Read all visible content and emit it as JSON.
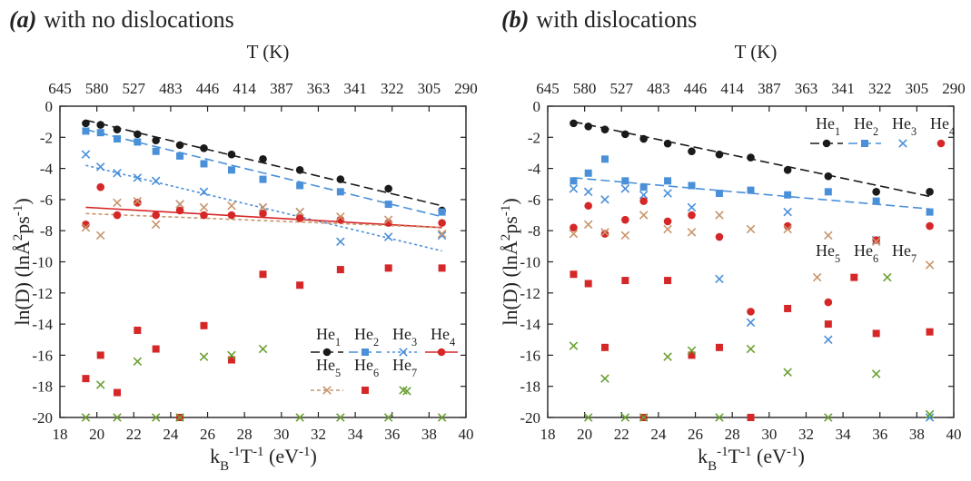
{
  "panels": [
    {
      "label": "(a)",
      "title": "with no dislocations",
      "top_axis_label": "T (K)",
      "x_label": "k_B^-1 T^-1 (eV^-1)",
      "y_label": "ln(D) (lnÅ^2ps^-1)"
    },
    {
      "label": "(b)",
      "title": "with dislocations",
      "top_axis_label": "T (K)",
      "x_label": "k_B^-1 T^-1 (eV^-1)",
      "y_label": "ln(D) (lnÅ^2ps^-1)"
    }
  ],
  "styles": {
    "He1": {
      "color": "#1a1a1a",
      "marker": "circle",
      "dash": "10,5"
    },
    "He2": {
      "color": "#4a90d9",
      "marker": "square",
      "dash": "10,5"
    },
    "He3": {
      "color": "#4a90d9",
      "marker": "cross",
      "dash": "3,3"
    },
    "He4": {
      "color": "#d62728",
      "marker": "circle",
      "dash": ""
    },
    "He5": {
      "color": "#c8956b",
      "marker": "cross",
      "dash": "4,3"
    },
    "He6": {
      "color": "#d62728",
      "marker": "square",
      "dash": ""
    },
    "He7": {
      "color": "#6aa033",
      "marker": "cross",
      "dash": ""
    }
  },
  "chart_data": [
    {
      "type": "scatter",
      "title": "with no dislocations",
      "xlabel": "k_B^-1 T^-1 (eV^-1)",
      "ylabel": "ln(D) (lnÅ^2ps^-1)",
      "xlim": [
        18,
        40
      ],
      "ylim": [
        -20,
        0
      ],
      "x_ticks": [
        18,
        20,
        22,
        24,
        26,
        28,
        30,
        32,
        34,
        36,
        38,
        40
      ],
      "y_ticks": [
        0,
        -2,
        -4,
        -6,
        -8,
        -10,
        -12,
        -14,
        -16,
        -18,
        -20
      ],
      "top_axis": {
        "label": "T (K)",
        "ticks": [
          645,
          580,
          527,
          483,
          446,
          414,
          387,
          363,
          341,
          322,
          305,
          290
        ]
      },
      "legend": {
        "row1": [
          {
            "key": "He1",
            "label_base": "He",
            "label_sub": "1"
          },
          {
            "key": "He2",
            "label_base": "He",
            "label_sub": "2"
          },
          {
            "key": "He3",
            "label_base": "He",
            "label_sub": "3"
          },
          {
            "key": "He4",
            "label_base": "He",
            "label_sub": "4"
          }
        ],
        "row2": [
          {
            "key": "He5",
            "label_base": "He",
            "label_sub": "5"
          },
          {
            "key": "He6",
            "label_base": "He",
            "label_sub": "6"
          },
          {
            "key": "He7",
            "label_base": "He",
            "label_sub": "7"
          }
        ]
      },
      "series": [
        {
          "key": "He1",
          "x": [
            19.4,
            20.2,
            21.1,
            22.2,
            23.2,
            24.5,
            25.8,
            27.3,
            29.0,
            31.0,
            33.2,
            35.8,
            38.7
          ],
          "y": [
            -1.1,
            -1.2,
            -1.5,
            -1.8,
            -2.2,
            -2.5,
            -2.7,
            -3.1,
            -3.4,
            -4.1,
            -4.7,
            -5.3,
            -6.7
          ],
          "fit": [
            [
              19.4,
              -0.9
            ],
            [
              38.7,
              -6.4
            ]
          ]
        },
        {
          "key": "He2",
          "x": [
            19.4,
            20.2,
            21.1,
            22.2,
            23.2,
            24.5,
            25.8,
            27.3,
            29.0,
            31.0,
            33.2,
            35.8,
            38.7
          ],
          "y": [
            -1.6,
            -1.7,
            -2.1,
            -2.3,
            -2.9,
            -3.2,
            -3.7,
            -4.1,
            -4.7,
            -5.1,
            -5.5,
            -6.3,
            -6.8
          ],
          "fit": [
            [
              19.4,
              -1.5
            ],
            [
              38.7,
              -7.1
            ]
          ]
        },
        {
          "key": "He3",
          "x": [
            19.4,
            20.2,
            21.1,
            22.2,
            23.2,
            24.5,
            25.8,
            29.0,
            31.0,
            33.2,
            35.8,
            38.7
          ],
          "y": [
            -3.1,
            -3.9,
            -4.3,
            -4.6,
            -4.8,
            -6.3,
            -5.5,
            -6.5,
            -6.8,
            -8.7,
            -8.4,
            -8.3
          ],
          "fit": [
            [
              19.4,
              -3.8
            ],
            [
              38.7,
              -9.3
            ]
          ]
        },
        {
          "key": "He4",
          "x": [
            19.4,
            20.2,
            21.1,
            22.2,
            23.2,
            24.5,
            25.8,
            27.3,
            29.0,
            31.0,
            33.2,
            35.8,
            38.7
          ],
          "y": [
            -7.6,
            -5.2,
            -7.0,
            -6.2,
            -7.0,
            -6.7,
            -7.0,
            -7.0,
            -6.9,
            -7.2,
            -7.3,
            -7.5,
            -7.5
          ],
          "fit": [
            [
              19.4,
              -6.5
            ],
            [
              38.7,
              -7.8
            ]
          ]
        },
        {
          "key": "He5",
          "x": [
            19.4,
            20.2,
            21.1,
            22.2,
            23.2,
            24.5,
            25.8,
            27.3,
            29.0,
            31.0,
            33.2,
            35.8,
            38.7
          ],
          "y": [
            -7.8,
            -8.3,
            -6.2,
            -6.1,
            -7.6,
            -6.3,
            -6.5,
            -6.4,
            -6.5,
            -6.8,
            -7.1,
            -7.3,
            -8.2
          ],
          "fit": [
            [
              19.4,
              -6.9
            ],
            [
              38.7,
              -7.8
            ]
          ]
        },
        {
          "key": "He6",
          "x": [
            19.4,
            20.2,
            21.1,
            22.2,
            23.2,
            24.5,
            25.8,
            27.3,
            29.0,
            31.0,
            33.2,
            35.8,
            38.7
          ],
          "y": [
            -17.5,
            -16.0,
            -18.4,
            -14.4,
            -15.6,
            -20.0,
            -14.1,
            -16.3,
            -10.8,
            -11.5,
            -10.5,
            -10.4,
            -10.4
          ]
        },
        {
          "key": "He7",
          "x": [
            19.4,
            20.2,
            21.1,
            22.2,
            23.2,
            24.5,
            25.8,
            27.3,
            29.0,
            31.0,
            33.2,
            35.8,
            36.8,
            38.7
          ],
          "y": [
            -20.0,
            -17.9,
            -20.0,
            -16.4,
            -20.0,
            -20.0,
            -16.1,
            -16.0,
            -15.6,
            -20.0,
            -20.0,
            -20.0,
            -18.3,
            -20.0
          ]
        }
      ]
    },
    {
      "type": "scatter",
      "title": "with dislocations",
      "xlabel": "k_B^-1 T^-1 (eV^-1)",
      "ylabel": "ln(D) (lnÅ^2ps^-1)",
      "xlim": [
        18,
        40
      ],
      "ylim": [
        -20,
        0
      ],
      "x_ticks": [
        18,
        20,
        22,
        24,
        26,
        28,
        30,
        32,
        34,
        36,
        38,
        40
      ],
      "y_ticks": [
        0,
        -2,
        -4,
        -6,
        -8,
        -10,
        -12,
        -14,
        -16,
        -18,
        -20
      ],
      "top_axis": {
        "label": "T (K)",
        "ticks": [
          645,
          580,
          527,
          483,
          446,
          414,
          387,
          363,
          341,
          322,
          305,
          290
        ]
      },
      "legend": {
        "row1": [
          {
            "key": "He1",
            "label_base": "He",
            "label_sub": "1"
          },
          {
            "key": "He2",
            "label_base": "He",
            "label_sub": "2"
          },
          {
            "key": "He3",
            "label_base": "He",
            "label_sub": "3"
          },
          {
            "key": "He4",
            "label_base": "He",
            "label_sub": "4"
          }
        ],
        "row2": [
          {
            "key": "He5",
            "label_base": "He",
            "label_sub": "5"
          },
          {
            "key": "He6",
            "label_base": "He",
            "label_sub": "6"
          },
          {
            "key": "He7",
            "label_base": "He",
            "label_sub": "7"
          }
        ]
      },
      "series": [
        {
          "key": "He1",
          "x": [
            19.4,
            20.2,
            21.1,
            22.2,
            23.2,
            24.5,
            25.8,
            27.3,
            29.0,
            31.0,
            33.2,
            35.8,
            38.7
          ],
          "y": [
            -1.1,
            -1.3,
            -1.5,
            -1.8,
            -2.1,
            -2.4,
            -2.9,
            -3.1,
            -3.3,
            -4.1,
            -4.5,
            -5.5,
            -5.5
          ],
          "fit": [
            [
              19.4,
              -1.0
            ],
            [
              38.7,
              -5.8
            ]
          ]
        },
        {
          "key": "He2",
          "x": [
            19.4,
            20.2,
            21.1,
            22.2,
            23.2,
            24.5,
            25.8,
            27.3,
            29.0,
            31.0,
            33.2,
            35.8,
            38.7
          ],
          "y": [
            -4.8,
            -4.3,
            -3.4,
            -4.8,
            -5.2,
            -4.8,
            -5.1,
            -5.6,
            -5.4,
            -5.7,
            -5.5,
            -6.1,
            -6.8
          ],
          "fit": [
            [
              19.4,
              -4.6
            ],
            [
              38.7,
              -6.6
            ]
          ]
        },
        {
          "key": "He3",
          "x": [
            19.4,
            20.2,
            21.1,
            22.2,
            23.2,
            24.5,
            25.8,
            27.3,
            29.0,
            31.0,
            33.2,
            35.8,
            38.7
          ],
          "y": [
            -5.3,
            -5.5,
            -6.0,
            -5.3,
            -5.7,
            -5.6,
            -6.5,
            -11.1,
            -13.9,
            -6.8,
            -15.0,
            -8.6,
            -20.0
          ]
        },
        {
          "key": "He4",
          "x": [
            19.4,
            20.2,
            21.1,
            22.2,
            23.2,
            24.5,
            25.8,
            27.3,
            29.0,
            31.0,
            33.2,
            35.8,
            38.7
          ],
          "y": [
            -7.8,
            -6.4,
            -8.2,
            -7.3,
            -6.1,
            -7.4,
            -7.0,
            -8.4,
            -13.2,
            -7.7,
            -12.6,
            -8.6,
            -7.7
          ]
        },
        {
          "key": "He5",
          "x": [
            19.4,
            20.2,
            21.1,
            22.2,
            23.2,
            24.5,
            25.8,
            27.3,
            29.0,
            31.0,
            32.6,
            33.2,
            35.8,
            38.7
          ],
          "y": [
            -8.2,
            -7.6,
            -8.1,
            -8.3,
            -7.0,
            -7.9,
            -8.1,
            -7.0,
            -7.9,
            -7.9,
            -11.0,
            -8.3,
            -8.7,
            -10.2
          ]
        },
        {
          "key": "He6",
          "x": [
            19.4,
            20.2,
            21.1,
            22.2,
            23.2,
            24.5,
            25.8,
            27.3,
            29.0,
            31.0,
            33.2,
            34.6,
            35.8,
            38.7
          ],
          "y": [
            -10.8,
            -11.4,
            -15.5,
            -11.2,
            -20.0,
            -11.2,
            -16.0,
            -15.5,
            -20.0,
            -13.0,
            -14.0,
            -11.0,
            -14.6,
            -14.5
          ]
        },
        {
          "key": "He7",
          "x": [
            19.4,
            20.2,
            21.1,
            22.2,
            23.2,
            24.5,
            25.8,
            27.3,
            29.0,
            31.0,
            33.2,
            35.8,
            36.4,
            38.7
          ],
          "y": [
            -15.4,
            -20.0,
            -17.5,
            -20.0,
            -20.0,
            -16.1,
            -15.7,
            -20.0,
            -15.6,
            -17.1,
            -20.0,
            -17.2,
            -11.0,
            -19.8
          ]
        }
      ]
    }
  ]
}
